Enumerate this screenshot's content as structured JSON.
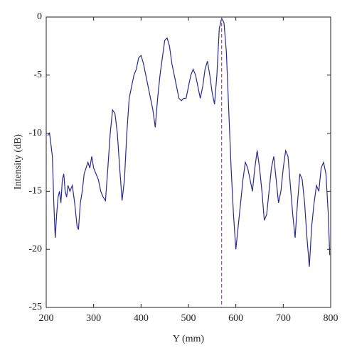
{
  "chart_data": {
    "type": "line",
    "x_label": "Y (mm)",
    "y_label": "Intensity (dB)",
    "xlim": [
      200,
      800
    ],
    "ylim": [
      -25,
      0
    ],
    "xticks": [
      200,
      300,
      400,
      500,
      600,
      700,
      800
    ],
    "yticks": [
      -25,
      -20,
      -15,
      -10,
      -5,
      0
    ],
    "vline_x": 570,
    "vline_color": "#b04090",
    "series": [
      {
        "color": "#2a2a8c",
        "x": [
          203,
          207,
          210,
          213,
          216,
          219,
          222,
          225,
          228,
          231,
          234,
          237,
          240,
          243,
          246,
          250,
          255,
          260,
          265,
          268,
          272,
          276,
          280,
          284,
          288,
          292,
          296,
          300,
          305,
          310,
          315,
          320,
          325,
          330,
          335,
          340,
          345,
          350,
          355,
          360,
          365,
          370,
          375,
          380,
          385,
          390,
          395,
          400,
          405,
          410,
          415,
          420,
          425,
          430,
          435,
          440,
          445,
          450,
          455,
          460,
          465,
          470,
          475,
          480,
          485,
          490,
          495,
          500,
          505,
          510,
          515,
          520,
          525,
          530,
          535,
          540,
          545,
          550,
          555,
          560,
          565,
          570,
          575,
          580,
          585,
          590,
          595,
          600,
          605,
          610,
          615,
          620,
          625,
          630,
          635,
          640,
          645,
          650,
          655,
          660,
          665,
          670,
          675,
          680,
          685,
          690,
          695,
          700,
          705,
          710,
          715,
          720,
          725,
          730,
          735,
          740,
          745,
          750,
          755,
          760,
          765,
          770,
          775,
          780,
          785,
          790,
          795,
          798
        ],
        "values": [
          -10.2,
          -10,
          -11,
          -12,
          -16,
          -19,
          -17,
          -15.5,
          -15,
          -16,
          -14,
          -13.5,
          -15,
          -15.5,
          -14.5,
          -15,
          -14.5,
          -16,
          -18,
          -18.3,
          -16,
          -15,
          -13.5,
          -13,
          -12.5,
          -13,
          -12,
          -13,
          -13.5,
          -14,
          -15,
          -15.5,
          -15.8,
          -13,
          -10,
          -8,
          -8.3,
          -10,
          -13,
          -15.8,
          -14,
          -10,
          -7,
          -6,
          -5,
          -4.5,
          -3.5,
          -3.3,
          -4,
          -5,
          -6,
          -7,
          -8,
          -9.5,
          -7,
          -5,
          -3.5,
          -2,
          -1.8,
          -2.5,
          -4,
          -5,
          -6,
          -7,
          -7.2,
          -7,
          -7,
          -6,
          -5,
          -4.5,
          -5,
          -6,
          -7,
          -6,
          -4.5,
          -3.8,
          -5,
          -6.5,
          -7.5,
          -5,
          -1,
          -0.1,
          -0.5,
          -3,
          -8,
          -13,
          -17,
          -20,
          -18,
          -16,
          -14,
          -12.5,
          -13,
          -14,
          -15,
          -13,
          -11.5,
          -13,
          -15,
          -17.5,
          -17,
          -15,
          -13,
          -12,
          -14,
          -16,
          -15,
          -13,
          -11.5,
          -12,
          -14.5,
          -17,
          -19,
          -16,
          -13.5,
          -14,
          -16,
          -19,
          -21.5,
          -18,
          -16,
          -14.5,
          -15,
          -13,
          -12.5,
          -13.5,
          -17,
          -20.5
        ]
      }
    ]
  }
}
